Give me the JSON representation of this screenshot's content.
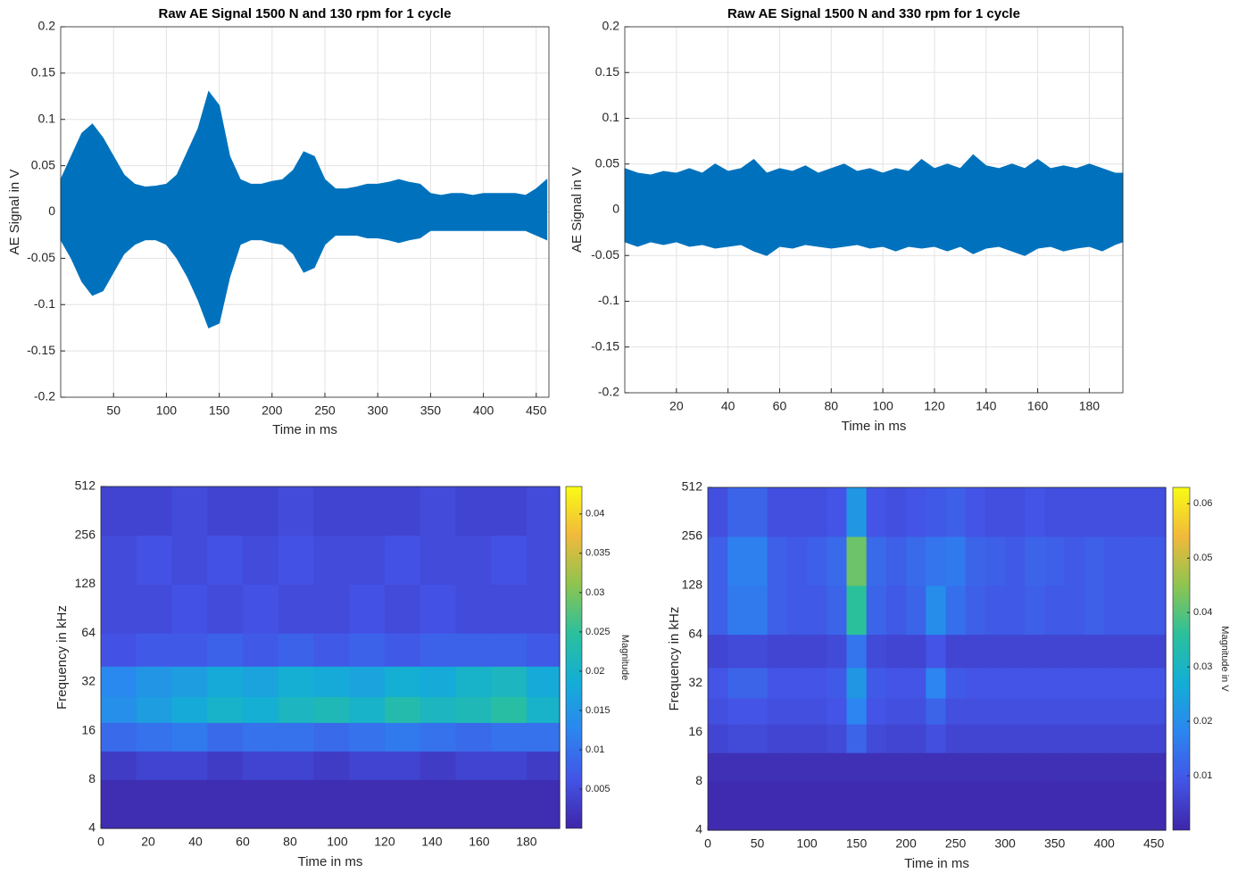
{
  "chart_data": [
    {
      "type": "line",
      "title": "Raw AE Signal 1500 N and 130 rpm for 1 cycle",
      "xlabel": "Time in ms",
      "ylabel": "AE Signal in V",
      "x": [
        0,
        10,
        20,
        30,
        40,
        50,
        60,
        70,
        80,
        90,
        100,
        110,
        120,
        130,
        140,
        150,
        160,
        170,
        180,
        190,
        200,
        210,
        220,
        230,
        240,
        250,
        260,
        270,
        280,
        290,
        300,
        310,
        320,
        330,
        340,
        350,
        360,
        370,
        380,
        390,
        400,
        410,
        420,
        430,
        440,
        450,
        460
      ],
      "series": [
        {
          "color": "#0072bd",
          "values": [
            0.035,
            0.06,
            0.085,
            0.095,
            0.08,
            0.06,
            0.04,
            0.03,
            0.027,
            0.028,
            0.03,
            0.04,
            0.065,
            0.09,
            0.13,
            0.115,
            0.06,
            0.035,
            0.03,
            0.03,
            0.033,
            0.035,
            0.045,
            0.065,
            0.06,
            0.035,
            0.025,
            0.025,
            0.027,
            0.03,
            0.03,
            0.032,
            0.035,
            0.032,
            0.03,
            0.02,
            0.018,
            0.02,
            0.02,
            0.018,
            0.02,
            0.02,
            0.02,
            0.02,
            0.018,
            0.025,
            0.035
          ]
        },
        {
          "color": "#0072bd",
          "values": [
            -0.03,
            -0.05,
            -0.075,
            -0.09,
            -0.085,
            -0.065,
            -0.045,
            -0.035,
            -0.03,
            -0.03,
            -0.035,
            -0.05,
            -0.07,
            -0.095,
            -0.125,
            -0.12,
            -0.07,
            -0.035,
            -0.03,
            -0.03,
            -0.033,
            -0.035,
            -0.045,
            -0.065,
            -0.06,
            -0.035,
            -0.025,
            -0.025,
            -0.025,
            -0.028,
            -0.028,
            -0.03,
            -0.033,
            -0.03,
            -0.028,
            -0.02,
            -0.02,
            -0.02,
            -0.02,
            -0.02,
            -0.02,
            -0.02,
            -0.02,
            -0.02,
            -0.02,
            -0.025,
            -0.03
          ]
        }
      ],
      "xlim": [
        0,
        462
      ],
      "xticks": [
        50,
        100,
        150,
        200,
        250,
        300,
        350,
        400,
        450
      ],
      "ylim": [
        -0.2,
        0.2
      ],
      "yticks": [
        -0.2,
        -0.15,
        -0.1,
        -0.05,
        0,
        0.05,
        0.1,
        0.15,
        0.2
      ],
      "grid": true
    },
    {
      "type": "line",
      "title": "Raw AE Signal 1500 N and 330 rpm for 1 cycle",
      "xlabel": "Time in ms",
      "ylabel": "AE Signal in V",
      "x": [
        0,
        5,
        10,
        15,
        20,
        25,
        30,
        35,
        40,
        45,
        50,
        55,
        60,
        65,
        70,
        75,
        80,
        85,
        90,
        95,
        100,
        105,
        110,
        115,
        120,
        125,
        130,
        135,
        140,
        145,
        150,
        155,
        160,
        165,
        170,
        175,
        180,
        185,
        190,
        193
      ],
      "series": [
        {
          "color": "#0072bd",
          "values": [
            0.045,
            0.04,
            0.038,
            0.042,
            0.04,
            0.045,
            0.04,
            0.05,
            0.042,
            0.045,
            0.055,
            0.04,
            0.045,
            0.042,
            0.048,
            0.04,
            0.045,
            0.05,
            0.042,
            0.045,
            0.04,
            0.045,
            0.042,
            0.055,
            0.045,
            0.05,
            0.045,
            0.06,
            0.048,
            0.045,
            0.05,
            0.045,
            0.055,
            0.045,
            0.048,
            0.045,
            0.05,
            0.045,
            0.04,
            0.04
          ]
        },
        {
          "color": "#0072bd",
          "values": [
            -0.035,
            -0.04,
            -0.035,
            -0.038,
            -0.035,
            -0.04,
            -0.038,
            -0.042,
            -0.04,
            -0.038,
            -0.045,
            -0.05,
            -0.04,
            -0.042,
            -0.038,
            -0.04,
            -0.042,
            -0.04,
            -0.038,
            -0.042,
            -0.04,
            -0.045,
            -0.04,
            -0.042,
            -0.04,
            -0.045,
            -0.04,
            -0.048,
            -0.042,
            -0.04,
            -0.045,
            -0.05,
            -0.042,
            -0.04,
            -0.045,
            -0.042,
            -0.04,
            -0.045,
            -0.038,
            -0.035
          ]
        }
      ],
      "xlim": [
        0,
        193
      ],
      "xticks": [
        20,
        40,
        60,
        80,
        100,
        120,
        140,
        160,
        180
      ],
      "ylim": [
        -0.2,
        0.2
      ],
      "yticks": [
        -0.2,
        -0.15,
        -0.1,
        -0.05,
        0,
        0.05,
        0.1,
        0.15,
        0.2
      ],
      "grid": true
    },
    {
      "type": "heatmap",
      "xlabel": "Time in ms",
      "ylabel": "Frequency in kHz",
      "clabel": "Magnitude",
      "x": [
        0,
        15,
        30,
        45,
        60,
        75,
        90,
        105,
        120,
        135,
        150,
        165,
        180,
        194
      ],
      "y": [
        4,
        8,
        12,
        18,
        26,
        40,
        64,
        128,
        256,
        512
      ],
      "z": [
        [
          0.001,
          0.001,
          0.001,
          0.001,
          0.001,
          0.001,
          0.001,
          0.001,
          0.001,
          0.001,
          0.001,
          0.001,
          0.001
        ],
        [
          0.003,
          0.004,
          0.004,
          0.003,
          0.004,
          0.004,
          0.003,
          0.004,
          0.004,
          0.003,
          0.004,
          0.004,
          0.003
        ],
        [
          0.009,
          0.01,
          0.011,
          0.009,
          0.01,
          0.01,
          0.009,
          0.01,
          0.011,
          0.01,
          0.009,
          0.01,
          0.01
        ],
        [
          0.014,
          0.016,
          0.018,
          0.02,
          0.019,
          0.021,
          0.022,
          0.02,
          0.023,
          0.021,
          0.022,
          0.024,
          0.02
        ],
        [
          0.013,
          0.015,
          0.016,
          0.018,
          0.017,
          0.019,
          0.018,
          0.017,
          0.019,
          0.018,
          0.02,
          0.021,
          0.018
        ],
        [
          0.006,
          0.007,
          0.007,
          0.008,
          0.007,
          0.008,
          0.007,
          0.008,
          0.007,
          0.008,
          0.008,
          0.008,
          0.007
        ],
        [
          0.005,
          0.005,
          0.006,
          0.005,
          0.006,
          0.005,
          0.005,
          0.006,
          0.005,
          0.006,
          0.005,
          0.005,
          0.005
        ],
        [
          0.005,
          0.006,
          0.005,
          0.006,
          0.005,
          0.006,
          0.005,
          0.005,
          0.006,
          0.005,
          0.005,
          0.006,
          0.005
        ],
        [
          0.004,
          0.004,
          0.005,
          0.004,
          0.004,
          0.005,
          0.004,
          0.004,
          0.004,
          0.005,
          0.004,
          0.004,
          0.005
        ]
      ],
      "xlim": [
        0,
        194
      ],
      "xticks": [
        0,
        20,
        40,
        60,
        80,
        100,
        120,
        140,
        160,
        180
      ],
      "ylim": [
        4,
        512
      ],
      "yticks": [
        4,
        8,
        16,
        32,
        64,
        128,
        256,
        512
      ],
      "ylog": true,
      "clim": [
        0,
        0.0435
      ],
      "cticks": [
        0.005,
        0.01,
        0.015,
        0.02,
        0.025,
        0.03,
        0.035,
        0.04
      ],
      "colormap": [
        "#3e26a8",
        "#4354e6",
        "#2c85f0",
        "#13aed6",
        "#2bc09c",
        "#8ec44f",
        "#f1b93b",
        "#f9fb15"
      ]
    },
    {
      "type": "heatmap",
      "xlabel": "Time in ms",
      "ylabel": "Frequency in kHz",
      "clabel": "Magnitude in V",
      "x": [
        0,
        20,
        40,
        60,
        80,
        100,
        120,
        140,
        160,
        180,
        200,
        220,
        240,
        260,
        280,
        300,
        320,
        340,
        360,
        380,
        400,
        420,
        440,
        462
      ],
      "y": [
        4,
        8,
        12,
        18,
        26,
        40,
        64,
        128,
        256,
        512
      ],
      "z": [
        [
          0.001,
          0.001,
          0.001,
          0.001,
          0.001,
          0.001,
          0.001,
          0.001,
          0.001,
          0.001,
          0.001,
          0.001,
          0.001,
          0.001,
          0.001,
          0.001,
          0.001,
          0.001,
          0.001,
          0.001,
          0.001,
          0.001,
          0.001
        ],
        [
          0.002,
          0.002,
          0.002,
          0.002,
          0.002,
          0.002,
          0.002,
          0.002,
          0.002,
          0.002,
          0.002,
          0.002,
          0.002,
          0.002,
          0.002,
          0.002,
          0.002,
          0.002,
          0.002,
          0.002,
          0.002,
          0.002,
          0.002
        ],
        [
          0.006,
          0.007,
          0.007,
          0.006,
          0.006,
          0.006,
          0.007,
          0.012,
          0.007,
          0.006,
          0.006,
          0.008,
          0.006,
          0.006,
          0.006,
          0.006,
          0.006,
          0.006,
          0.006,
          0.006,
          0.006,
          0.006,
          0.006
        ],
        [
          0.008,
          0.009,
          0.009,
          0.008,
          0.008,
          0.008,
          0.009,
          0.018,
          0.009,
          0.008,
          0.008,
          0.012,
          0.008,
          0.008,
          0.008,
          0.008,
          0.008,
          0.008,
          0.008,
          0.008,
          0.008,
          0.008,
          0.008
        ],
        [
          0.009,
          0.012,
          0.012,
          0.009,
          0.009,
          0.009,
          0.01,
          0.022,
          0.01,
          0.009,
          0.009,
          0.018,
          0.01,
          0.009,
          0.009,
          0.009,
          0.009,
          0.009,
          0.009,
          0.009,
          0.009,
          0.009,
          0.009
        ],
        [
          0.006,
          0.007,
          0.007,
          0.006,
          0.006,
          0.006,
          0.007,
          0.015,
          0.007,
          0.006,
          0.006,
          0.009,
          0.006,
          0.006,
          0.006,
          0.006,
          0.006,
          0.006,
          0.006,
          0.006,
          0.006,
          0.006,
          0.006
        ],
        [
          0.011,
          0.016,
          0.016,
          0.011,
          0.01,
          0.01,
          0.012,
          0.036,
          0.012,
          0.01,
          0.012,
          0.02,
          0.014,
          0.011,
          0.01,
          0.01,
          0.011,
          0.01,
          0.01,
          0.011,
          0.01,
          0.01,
          0.01
        ],
        [
          0.011,
          0.017,
          0.017,
          0.011,
          0.01,
          0.011,
          0.013,
          0.042,
          0.013,
          0.011,
          0.013,
          0.015,
          0.016,
          0.012,
          0.011,
          0.01,
          0.012,
          0.011,
          0.01,
          0.011,
          0.01,
          0.01,
          0.01
        ],
        [
          0.008,
          0.012,
          0.012,
          0.008,
          0.008,
          0.008,
          0.009,
          0.022,
          0.009,
          0.008,
          0.009,
          0.01,
          0.011,
          0.009,
          0.008,
          0.008,
          0.009,
          0.008,
          0.008,
          0.008,
          0.008,
          0.008,
          0.008
        ]
      ],
      "xlim": [
        0,
        462
      ],
      "xticks": [
        0,
        50,
        100,
        150,
        200,
        250,
        300,
        350,
        400,
        450
      ],
      "ylim": [
        4,
        512
      ],
      "yticks": [
        4,
        8,
        16,
        32,
        64,
        128,
        256,
        512
      ],
      "ylog": true,
      "clim": [
        0,
        0.063
      ],
      "cticks": [
        0.01,
        0.02,
        0.03,
        0.04,
        0.05,
        0.06
      ],
      "colormap": [
        "#3e26a8",
        "#4354e6",
        "#2c85f0",
        "#13aed6",
        "#2bc09c",
        "#8ec44f",
        "#f1b93b",
        "#f9fb15"
      ]
    }
  ]
}
